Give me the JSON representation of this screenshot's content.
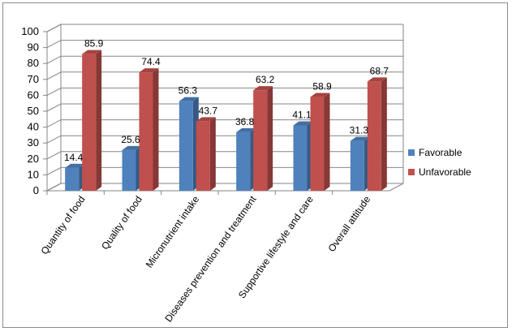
{
  "chart_data": {
    "type": "bar",
    "categories": [
      "Quantity of food",
      "Quality of food",
      "Micronutrient intake",
      "Diseases prevention and treatment",
      "Supportive lifestyle and care",
      "Overall attitude"
    ],
    "series": [
      {
        "name": "Favorable",
        "values": [
          14.4,
          25.6,
          56.3,
          36.8,
          41.1,
          31.3
        ],
        "color": "#4f81bd"
      },
      {
        "name": "Unfavorable",
        "values": [
          85.9,
          74.4,
          43.7,
          63.2,
          58.9,
          68.7
        ],
        "color": "#c0504d"
      }
    ],
    "ylim": [
      0,
      100
    ],
    "yticks": [
      0,
      10,
      20,
      30,
      40,
      50,
      60,
      70,
      80,
      90,
      100
    ],
    "grid": true,
    "legend": "right",
    "style": "3d-clustered-column"
  }
}
